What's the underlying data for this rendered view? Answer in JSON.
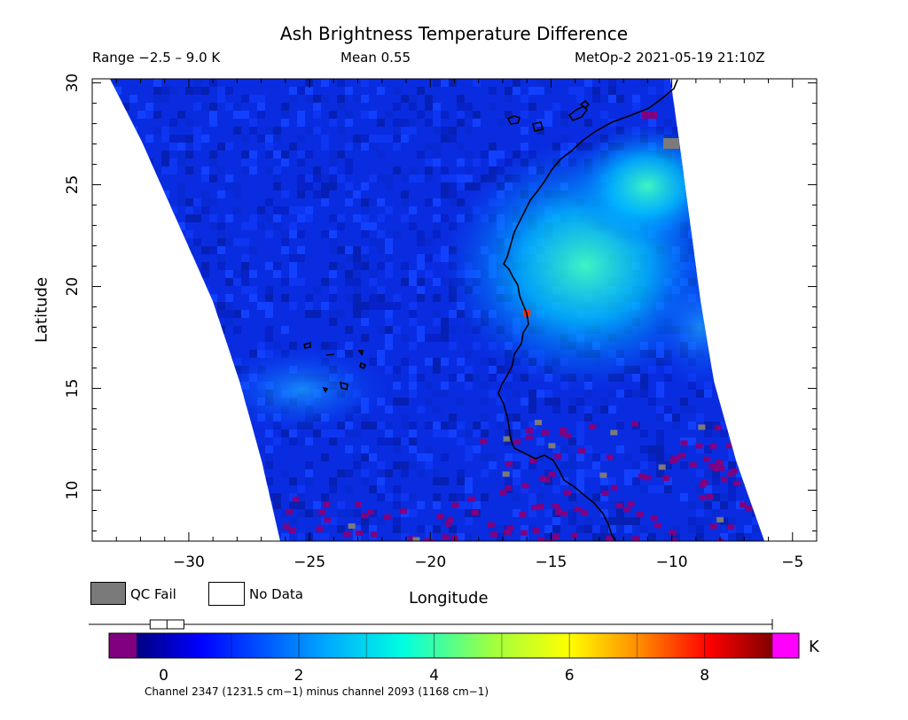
{
  "header": {
    "title": "Ash Brightness Temperature Difference",
    "range_text": "Range −2.5 – 9.0 K",
    "mean_text": "Mean 0.55",
    "satellite_text": "MetOp-2 2021-05-19 21:10Z"
  },
  "legend": {
    "qc_fail_label": "QC Fail",
    "no_data_label": "No Data",
    "qc_fail_color": "#7a7a7a",
    "no_data_color": "#ffffff"
  },
  "colorbar": {
    "unit": "K",
    "min": -0.8,
    "max": 9.0,
    "tick_values": [
      0,
      2,
      4,
      6,
      8
    ],
    "tick_labels": [
      "0",
      "2",
      "4",
      "6",
      "8"
    ],
    "range_indicator": [
      -0.2,
      0.3
    ],
    "footnote": "Channel 2347 (1231.5 cm−1) minus channel 2093 (1168 cm−1)",
    "low_color": "#800080",
    "high_color": "#ff00ff"
  },
  "chart_data": {
    "type": "heatmap",
    "title": "Ash Brightness Temperature Difference",
    "xlabel": "Longitude",
    "ylabel": "Latitude",
    "xlim": [
      -34,
      -4
    ],
    "ylim": [
      7.5,
      30.2
    ],
    "x_ticks": [
      -30,
      -25,
      -20,
      -15,
      -10,
      -5
    ],
    "x_tick_labels": [
      "−30",
      "−25",
      "−20",
      "−15",
      "−10",
      "−5"
    ],
    "y_ticks": [
      10,
      15,
      20,
      25,
      30
    ],
    "y_tick_labels": [
      "10",
      "15",
      "20",
      "25",
      "30"
    ],
    "value_range": [
      -2.5,
      9.0
    ],
    "mean": 0.55,
    "units": "K",
    "max_value_location": [
      -16.0,
      18.7
    ],
    "max_value": 7.8
  }
}
